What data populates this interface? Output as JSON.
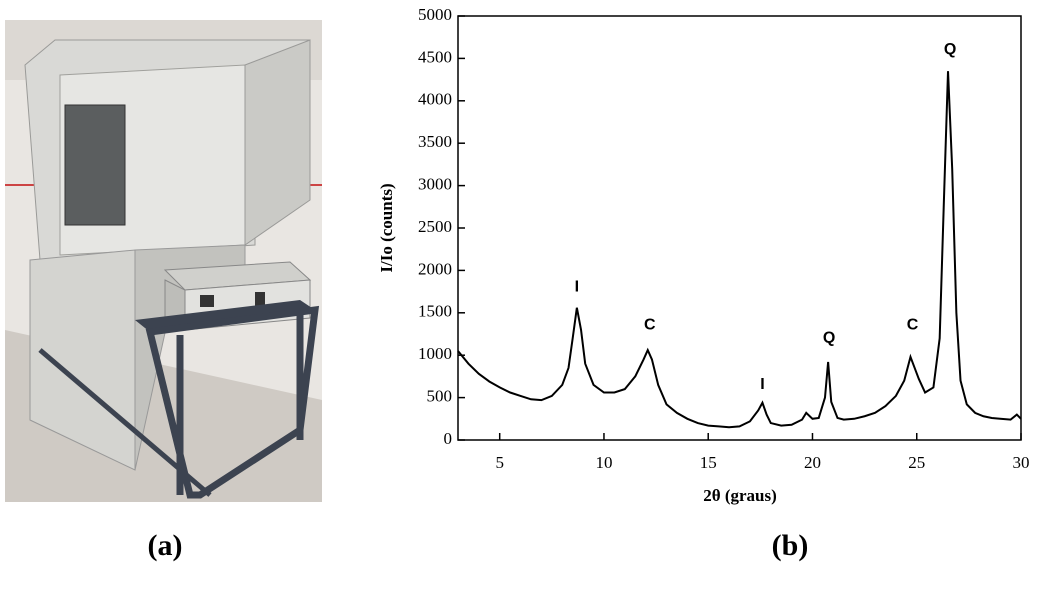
{
  "panels": [
    "(a)",
    "(b)"
  ],
  "chart_data": {
    "type": "line",
    "x_label": "2θ (graus)",
    "y_label": "I/Io (counts)",
    "xlim": [
      3,
      30
    ],
    "ylim": [
      0,
      5000
    ],
    "xticks": [
      5,
      10,
      15,
      20,
      25,
      30
    ],
    "yticks": [
      0,
      500,
      1000,
      1500,
      2000,
      2500,
      3000,
      3500,
      4000,
      4500,
      5000
    ],
    "x": [
      3,
      3.5,
      4,
      4.5,
      5,
      5.5,
      6,
      6.5,
      7,
      7.5,
      8,
      8.3,
      8.5,
      8.7,
      8.9,
      9.1,
      9.5,
      10,
      10.5,
      11,
      11.5,
      11.9,
      12.1,
      12.3,
      12.6,
      13,
      13.5,
      14,
      14.5,
      15,
      15.5,
      16,
      16.5,
      17,
      17.4,
      17.6,
      17.8,
      18,
      18.5,
      19,
      19.5,
      19.7,
      20,
      20.3,
      20.6,
      20.75,
      20.9,
      21.2,
      21.5,
      22,
      22.5,
      23,
      23.5,
      24,
      24.4,
      24.7,
      24.9,
      25.1,
      25.4,
      25.8,
      26.1,
      26.3,
      26.5,
      26.7,
      26.9,
      27.1,
      27.4,
      27.8,
      28.2,
      28.6,
      29,
      29.5,
      29.8,
      30
    ],
    "series": [
      {
        "color": "#000000",
        "values": [
          1050,
          900,
          780,
          690,
          620,
          560,
          520,
          480,
          470,
          520,
          650,
          850,
          1200,
          1560,
          1300,
          900,
          650,
          560,
          560,
          600,
          750,
          950,
          1060,
          950,
          650,
          420,
          320,
          250,
          200,
          170,
          160,
          150,
          160,
          220,
          350,
          440,
          300,
          200,
          170,
          180,
          240,
          320,
          250,
          260,
          500,
          920,
          450,
          260,
          240,
          250,
          280,
          320,
          400,
          520,
          700,
          980,
          850,
          720,
          560,
          620,
          1200,
          2800,
          4350,
          3200,
          1500,
          700,
          420,
          320,
          280,
          260,
          250,
          240,
          300,
          250
        ]
      }
    ],
    "annotations": [
      {
        "text": "I",
        "x": 8.7,
        "y": 1800
      },
      {
        "text": "C",
        "x": 12.2,
        "y": 1350
      },
      {
        "text": "I",
        "x": 17.6,
        "y": 650
      },
      {
        "text": "Q",
        "x": 20.8,
        "y": 1200
      },
      {
        "text": "C",
        "x": 24.8,
        "y": 1350
      },
      {
        "text": "Q",
        "x": 26.6,
        "y": 4600
      }
    ]
  }
}
